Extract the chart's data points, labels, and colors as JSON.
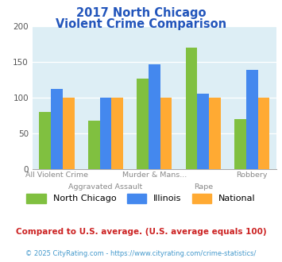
{
  "title_line1": "2017 North Chicago",
  "title_line2": "Violent Crime Comparison",
  "north_chicago": [
    80,
    68,
    127,
    170,
    70
  ],
  "illinois": [
    112,
    100,
    147,
    105,
    139
  ],
  "national": [
    100,
    100,
    100,
    100,
    100
  ],
  "color_nc": "#80c040",
  "color_il": "#4488ee",
  "color_nat": "#ffaa33",
  "ylabel_max": 200,
  "yticks": [
    0,
    50,
    100,
    150,
    200
  ],
  "legend_labels": [
    "North Chicago",
    "Illinois",
    "National"
  ],
  "xtick_top": [
    "",
    "Aggravated Assault",
    "",
    "Rape",
    ""
  ],
  "xtick_bottom": [
    "All Violent Crime",
    "",
    "Murder & Mans...",
    "",
    "Robbery"
  ],
  "footnote1": "Compared to U.S. average. (U.S. average equals 100)",
  "footnote2": "© 2025 CityRating.com - https://www.cityrating.com/crime-statistics/",
  "background_color": "#ddeef5",
  "title_color": "#2255bb",
  "footnote1_color": "#cc2222",
  "footnote2_color": "#4499cc"
}
